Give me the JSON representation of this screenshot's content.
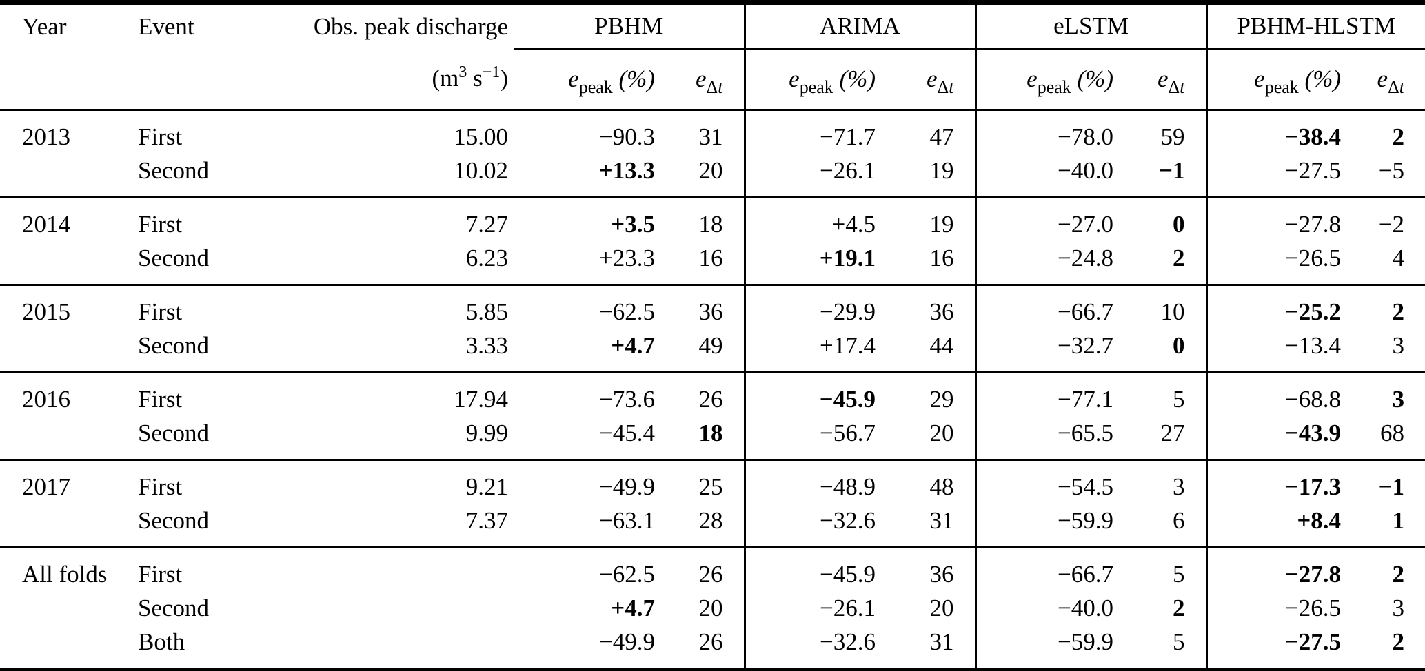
{
  "table": {
    "columns": {
      "year": "Year",
      "event": "Event",
      "discharge": "Obs. peak discharge",
      "discharge_unit": {
        "open": "(m",
        "sup1": "3",
        "mid": " s",
        "sup2": "−1",
        "close": ")"
      },
      "epeak_label": {
        "base": "e",
        "sub": "peak",
        "unit": " (%)"
      },
      "edt_label": {
        "base": "e",
        "sub_delta": "Δ",
        "sub_t": "t"
      }
    },
    "models": [
      "PBHM",
      "ARIMA",
      "eLSTM",
      "PBHM-HLSTM"
    ],
    "groups": [
      {
        "year": "2013",
        "rows": [
          {
            "event": "First",
            "discharge": "15.00",
            "cells": [
              [
                "−90.3",
                0
              ],
              [
                "31",
                0
              ],
              [
                "−71.7",
                0
              ],
              [
                "47",
                0
              ],
              [
                "−78.0",
                0
              ],
              [
                "59",
                0
              ],
              [
                "−38.4",
                1
              ],
              [
                "2",
                1
              ]
            ]
          },
          {
            "event": "Second",
            "discharge": "10.02",
            "cells": [
              [
                "+13.3",
                1
              ],
              [
                "20",
                0
              ],
              [
                "−26.1",
                0
              ],
              [
                "19",
                0
              ],
              [
                "−40.0",
                0
              ],
              [
                "−1",
                1
              ],
              [
                "−27.5",
                0
              ],
              [
                "−5",
                0
              ]
            ]
          }
        ]
      },
      {
        "year": "2014",
        "rows": [
          {
            "event": "First",
            "discharge": "7.27",
            "cells": [
              [
                "+3.5",
                1
              ],
              [
                "18",
                0
              ],
              [
                "+4.5",
                0
              ],
              [
                "19",
                0
              ],
              [
                "−27.0",
                0
              ],
              [
                "0",
                1
              ],
              [
                "−27.8",
                0
              ],
              [
                "−2",
                0
              ]
            ]
          },
          {
            "event": "Second",
            "discharge": "6.23",
            "cells": [
              [
                "+23.3",
                0
              ],
              [
                "16",
                0
              ],
              [
                "+19.1",
                1
              ],
              [
                "16",
                0
              ],
              [
                "−24.8",
                0
              ],
              [
                "2",
                1
              ],
              [
                "−26.5",
                0
              ],
              [
                "4",
                0
              ]
            ]
          }
        ]
      },
      {
        "year": "2015",
        "rows": [
          {
            "event": "First",
            "discharge": "5.85",
            "cells": [
              [
                "−62.5",
                0
              ],
              [
                "36",
                0
              ],
              [
                "−29.9",
                0
              ],
              [
                "36",
                0
              ],
              [
                "−66.7",
                0
              ],
              [
                "10",
                0
              ],
              [
                "−25.2",
                1
              ],
              [
                "2",
                1
              ]
            ]
          },
          {
            "event": "Second",
            "discharge": "3.33",
            "cells": [
              [
                "+4.7",
                1
              ],
              [
                "49",
                0
              ],
              [
                "+17.4",
                0
              ],
              [
                "44",
                0
              ],
              [
                "−32.7",
                0
              ],
              [
                "0",
                1
              ],
              [
                "−13.4",
                0
              ],
              [
                "3",
                0
              ]
            ]
          }
        ]
      },
      {
        "year": "2016",
        "rows": [
          {
            "event": "First",
            "discharge": "17.94",
            "cells": [
              [
                "−73.6",
                0
              ],
              [
                "26",
                0
              ],
              [
                "−45.9",
                1
              ],
              [
                "29",
                0
              ],
              [
                "−77.1",
                0
              ],
              [
                "5",
                0
              ],
              [
                "−68.8",
                0
              ],
              [
                "3",
                1
              ]
            ]
          },
          {
            "event": "Second",
            "discharge": "9.99",
            "cells": [
              [
                "−45.4",
                0
              ],
              [
                "18",
                1
              ],
              [
                "−56.7",
                0
              ],
              [
                "20",
                0
              ],
              [
                "−65.5",
                0
              ],
              [
                "27",
                0
              ],
              [
                "−43.9",
                1
              ],
              [
                "68",
                0
              ]
            ]
          }
        ]
      },
      {
        "year": "2017",
        "rows": [
          {
            "event": "First",
            "discharge": "9.21",
            "cells": [
              [
                "−49.9",
                0
              ],
              [
                "25",
                0
              ],
              [
                "−48.9",
                0
              ],
              [
                "48",
                0
              ],
              [
                "−54.5",
                0
              ],
              [
                "3",
                0
              ],
              [
                "−17.3",
                1
              ],
              [
                "−1",
                1
              ]
            ]
          },
          {
            "event": "Second",
            "discharge": "7.37",
            "cells": [
              [
                "−63.1",
                0
              ],
              [
                "28",
                0
              ],
              [
                "−32.6",
                0
              ],
              [
                "31",
                0
              ],
              [
                "−59.9",
                0
              ],
              [
                "6",
                0
              ],
              [
                "+8.4",
                1
              ],
              [
                "1",
                1
              ]
            ]
          }
        ]
      },
      {
        "year": "All folds",
        "rows": [
          {
            "event": "First",
            "discharge": "",
            "cells": [
              [
                "−62.5",
                0
              ],
              [
                "26",
                0
              ],
              [
                "−45.9",
                0
              ],
              [
                "36",
                0
              ],
              [
                "−66.7",
                0
              ],
              [
                "5",
                0
              ],
              [
                "−27.8",
                1
              ],
              [
                "2",
                1
              ]
            ]
          },
          {
            "event": "Second",
            "discharge": "",
            "cells": [
              [
                "+4.7",
                1
              ],
              [
                "20",
                0
              ],
              [
                "−26.1",
                0
              ],
              [
                "20",
                0
              ],
              [
                "−40.0",
                0
              ],
              [
                "2",
                1
              ],
              [
                "−26.5",
                0
              ],
              [
                "3",
                0
              ]
            ]
          },
          {
            "event": "Both",
            "discharge": "",
            "cells": [
              [
                "−49.9",
                0
              ],
              [
                "26",
                0
              ],
              [
                "−32.6",
                0
              ],
              [
                "31",
                0
              ],
              [
                "−59.9",
                0
              ],
              [
                "5",
                0
              ],
              [
                "−27.5",
                1
              ],
              [
                "2",
                1
              ]
            ]
          }
        ]
      }
    ]
  }
}
